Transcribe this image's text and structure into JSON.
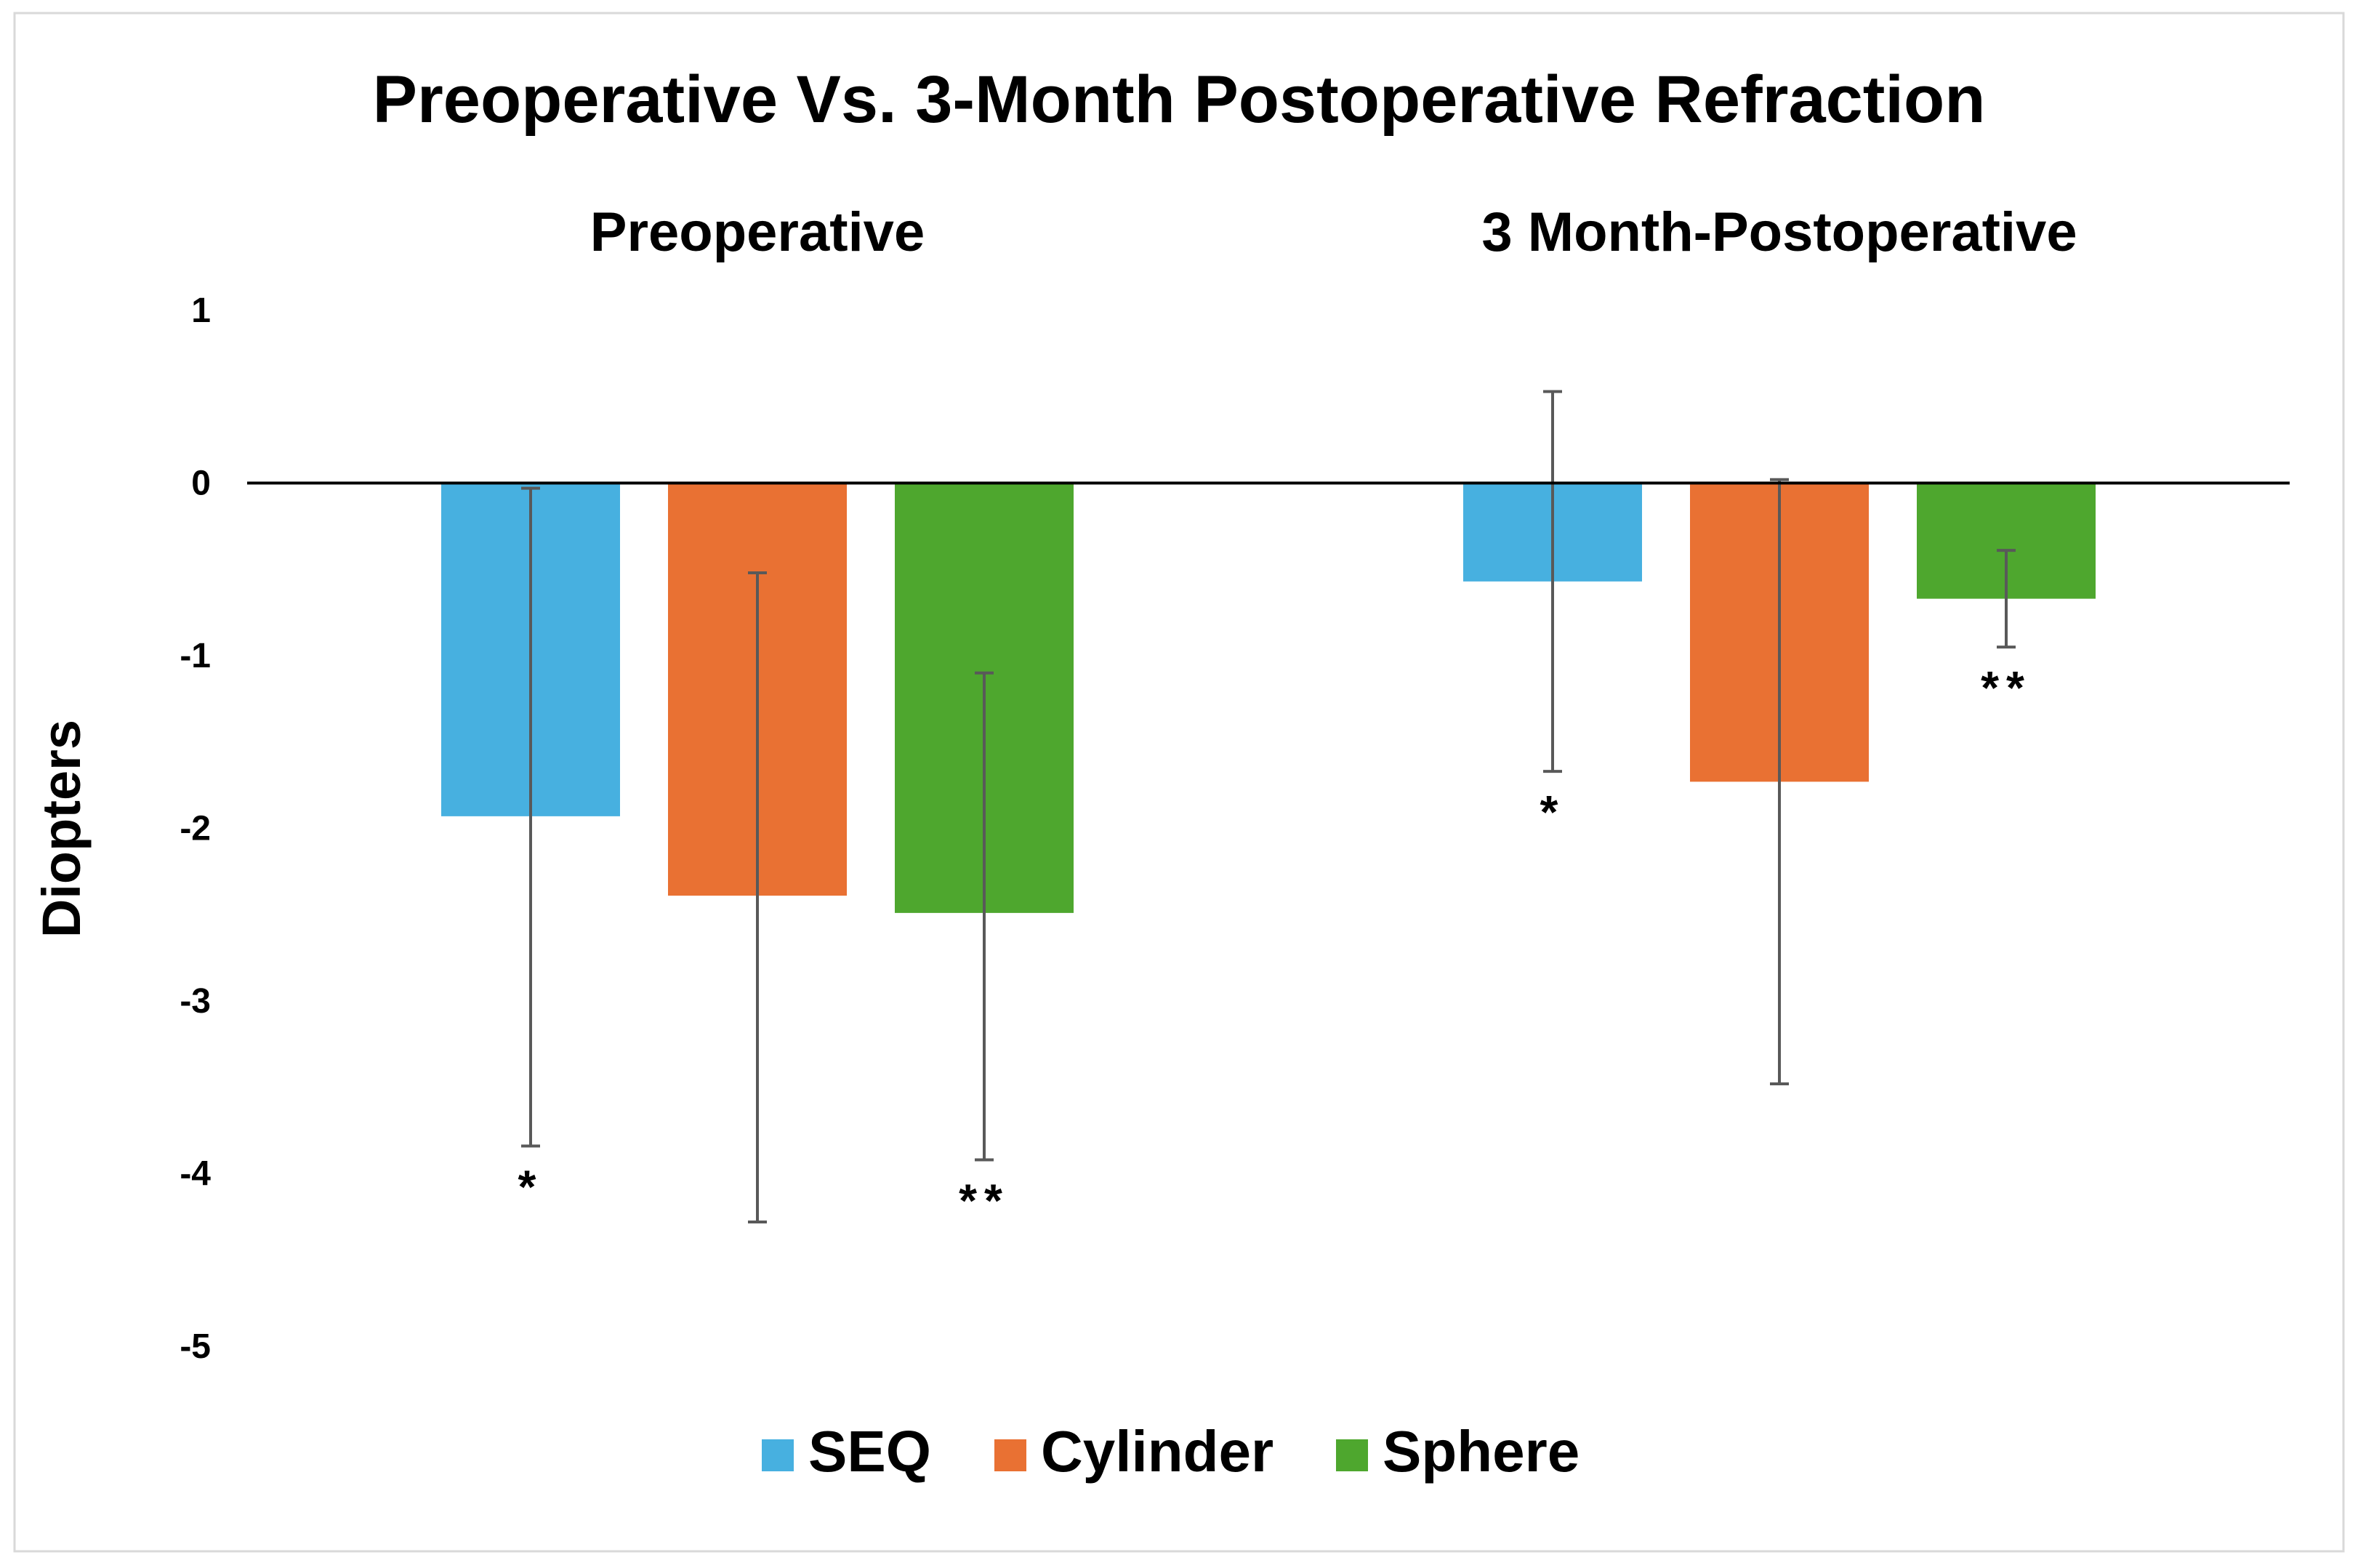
{
  "chart_data": {
    "type": "bar",
    "title": "Preoperative Vs. 3-Month Postoperative Refraction",
    "ylabel": "Diopters",
    "xlabel": "",
    "ylim": [
      -5,
      1
    ],
    "yticks": [
      "1",
      "0",
      "-1",
      "-2",
      "-3",
      "-4",
      "-5"
    ],
    "grid": false,
    "legend_position": "bottom",
    "categories": [
      "Preoperative",
      "3 Month-Postoperative"
    ],
    "series": [
      {
        "name": "SEQ",
        "color": "#47B0E0",
        "values": [
          -1.93,
          -0.57
        ],
        "error_low": [
          -3.84,
          -1.67
        ],
        "error_high": [
          -0.03,
          0.53
        ],
        "annotations": [
          "*",
          "*"
        ]
      },
      {
        "name": "Cylinder",
        "color": "#E97133",
        "values": [
          -2.39,
          -1.73
        ],
        "error_low": [
          -4.28,
          -3.48
        ],
        "error_high": [
          -0.52,
          0.02
        ],
        "annotations": [
          "",
          ""
        ]
      },
      {
        "name": "Sphere",
        "color": "#4EA72E",
        "values": [
          -2.49,
          -0.67
        ],
        "error_low": [
          -3.92,
          -0.95
        ],
        "error_high": [
          -1.1,
          -0.39
        ],
        "annotations": [
          "**",
          "**"
        ]
      }
    ]
  }
}
